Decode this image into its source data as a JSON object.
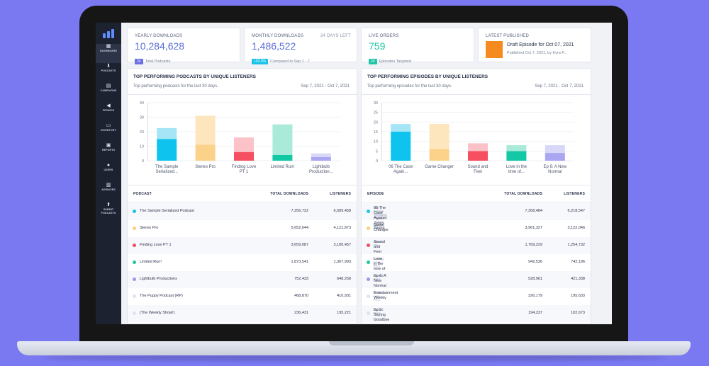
{
  "sidebar": {
    "items": [
      {
        "label": "DASHBOARD",
        "icon": "grid-icon",
        "glyph": "▦"
      },
      {
        "label": "PODCASTS",
        "icon": "mic-icon",
        "glyph": "⬇"
      },
      {
        "label": "CAMPAIGNS",
        "icon": "clipboard-icon",
        "glyph": "▤"
      },
      {
        "label": "PROMOS",
        "icon": "megaphone-icon",
        "glyph": "◀"
      },
      {
        "label": "INVENTORY",
        "icon": "box-icon",
        "glyph": "▭"
      },
      {
        "label": "REPORTS",
        "icon": "report-icon",
        "glyph": "▣"
      },
      {
        "label": "USERS",
        "icon": "users-icon",
        "glyph": "●"
      },
      {
        "label": "AGENCIES",
        "icon": "building-icon",
        "glyph": "▥"
      },
      {
        "label": "SUBMIT PODCASTS",
        "icon": "upload-icon",
        "glyph": "⬆"
      }
    ]
  },
  "stats": {
    "yearly": {
      "label": "YEARLY DOWNLOADS",
      "value": "10,284,628",
      "chip": "24",
      "sub": "Total Podcasts",
      "chip_color": "#6b6fe0"
    },
    "monthly": {
      "label": "MONTHLY DOWNLOADS",
      "days_left": "24 DAYS LEFT",
      "value": "1,486,522",
      "chip": "+92.9%",
      "sub": "Compared to Sep 1 - 7",
      "chip_color": "#19c2e8"
    },
    "orders": {
      "label": "LIVE ORDERS",
      "value": "759",
      "chip": "24",
      "sub": "Episodes Targeted",
      "chip_color": "#1fc6a6"
    },
    "latest": {
      "label": "LATEST PUBLISHED",
      "title": "Draft Episode for Oct 07, 2021",
      "sub": "Published Oct 7, 2021, by Kyra P..."
    }
  },
  "podcasts_panel": {
    "title": "TOP PERFORMING PODCASTS BY UNIQUE LISTENERS",
    "subtitle": "Top performing podcasts for the last 30 days.",
    "range": "Sep 7, 2021 - Oct 7, 2021",
    "headers": {
      "name": "PODCAST",
      "downloads": "TOTAL DOWNLOADS",
      "listeners": "LISTENERS"
    },
    "rows": [
      {
        "name": "The Sample Serialized Podcast",
        "downloads": "7,256,722",
        "listeners": "6,589,458",
        "color": "#19c2e8"
      },
      {
        "name": "Stereo Pro",
        "downloads": "5,652,644",
        "listeners": "4,121,873",
        "color": "#fbd07a"
      },
      {
        "name": "Finding Love PT 1",
        "downloads": "3,659,087",
        "listeners": "3,100,457",
        "color": "#f24d5e"
      },
      {
        "name": "Limited Run!",
        "downloads": "1,873,541",
        "listeners": "1,367,993",
        "color": "#1fc6a6"
      },
      {
        "name": "Lightbulb Productions",
        "downloads": "752,433",
        "listeners": "648,258",
        "color": "#9a97ec"
      },
      {
        "name": "The Puppy Podcast (RP)",
        "downloads": "468,870",
        "listeners": "410,931",
        "color": "#dfe2ef"
      },
      {
        "name": "(The Weekly Show!)",
        "downloads": "236,431",
        "listeners": "195,221",
        "color": "#dfe2ef"
      }
    ]
  },
  "episodes_panel": {
    "title": "TOP PERFORMING EPISODES BY UNIQUE LISTENERS",
    "subtitle": "Top performing episodes for the last 30 days.",
    "range": "Sep 7, 2021 - Oct 7, 2021",
    "headers": {
      "name": "EPISODE",
      "downloads": "TOTAL DOWNLOADS",
      "listeners": "LISTENERS"
    },
    "rows": [
      {
        "podcast": "The Sample Serialized Podcast",
        "name": "06 The Case Against Jonny Young",
        "downloads": "7,358,484",
        "listeners": "6,218,547",
        "color": "#19c2e8"
      },
      {
        "podcast": "Stereo Pro",
        "name": "Game Changer",
        "downloads": "3,961,327",
        "listeners": "3,122,046",
        "color": "#fbd07a"
      },
      {
        "podcast": "Stereo Pro",
        "name": "Sound and Feel",
        "downloads": "1,769,229",
        "listeners": "1,254,732",
        "color": "#f24d5e"
      },
      {
        "podcast": "Finding Love PT 1",
        "name": "Love in the time of COVID S1 E3",
        "downloads": "942,536",
        "listeners": "742,196",
        "color": "#1fc6a6"
      },
      {
        "podcast": "Limited Run!",
        "name": "Ep 6: A New Normal",
        "downloads": "528,961",
        "listeners": "421,338",
        "color": "#9a97ec"
      },
      {
        "podcast": "Finding Love PT 1",
        "name": "Entertainment Weekly",
        "downloads": "326,179",
        "listeners": "195,633",
        "color": "#dfe2ef"
      },
      {
        "podcast": "Limited Run!",
        "name": "Ep 5: Saying Goodbye",
        "downloads": "194,237",
        "listeners": "102,673",
        "color": "#dfe2ef"
      }
    ]
  },
  "chart_data": [
    {
      "type": "bar",
      "stacked": true,
      "categories": [
        "The Sample Serialized...",
        "Stereo Pro",
        "Finding Love PT 1",
        "Limited Run!",
        "Lightbulb Production..."
      ],
      "series": [
        {
          "values": [
            15,
            11,
            6,
            4,
            2.5
          ]
        },
        {
          "values": [
            7.5,
            20,
            10,
            21,
            2.5
          ]
        }
      ],
      "colors": [
        [
          "#0ec4ee",
          "#a6e5f6"
        ],
        [
          "#fcd28a",
          "#fde5bd"
        ],
        [
          "#f64f5f",
          "#fbc2c7"
        ],
        [
          "#13c8a4",
          "#a9ead9"
        ],
        [
          "#aaa6f1",
          "#d9d7f8"
        ]
      ],
      "ylim": [
        0,
        40
      ],
      "yticks": [
        0,
        10,
        20,
        30,
        40
      ],
      "grid": true
    },
    {
      "type": "bar",
      "stacked": true,
      "categories": [
        "06 The Case Again...",
        "Game Changer",
        "Sound and Feel",
        "Love in the time of...",
        "Ep 6: A New Normal"
      ],
      "series": [
        {
          "values": [
            15,
            6,
            5,
            5,
            4
          ]
        },
        {
          "values": [
            4,
            13,
            4,
            3,
            4
          ]
        }
      ],
      "colors": [
        [
          "#0ec4ee",
          "#a6e5f6"
        ],
        [
          "#fcd28a",
          "#fde5bd"
        ],
        [
          "#f64f5f",
          "#fbc2c7"
        ],
        [
          "#13c8a4",
          "#a9ead9"
        ],
        [
          "#aaa6f1",
          "#d9d7f8"
        ]
      ],
      "ylim": [
        0,
        30
      ],
      "yticks": [
        0,
        5,
        10,
        15,
        20,
        25,
        30
      ],
      "grid": true
    }
  ]
}
